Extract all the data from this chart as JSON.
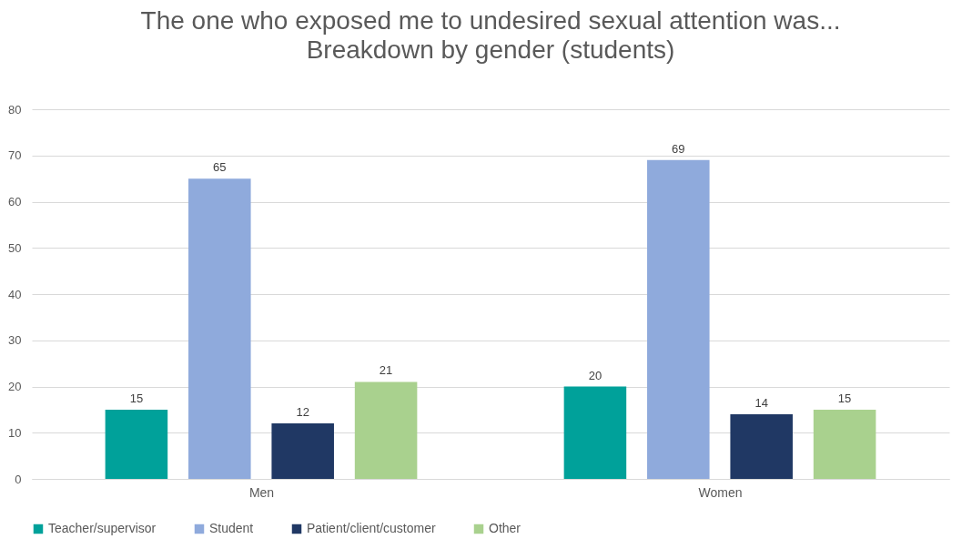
{
  "chart_data": {
    "type": "bar",
    "title": "The one who exposed me to undesired sexual attention was...",
    "subtitle": "Breakdown by gender (students)",
    "categories": [
      "Men",
      "Women"
    ],
    "series": [
      {
        "name": "Teacher/supervisor",
        "color": "#00a19a",
        "values": [
          15,
          20
        ]
      },
      {
        "name": "Student",
        "color": "#8faadc",
        "values": [
          65,
          69
        ]
      },
      {
        "name": "Patient/client/customer",
        "color": "#203864",
        "values": [
          12,
          14
        ]
      },
      {
        "name": "Other",
        "color": "#a9d18e",
        "values": [
          21,
          15
        ]
      }
    ],
    "ylim": [
      0,
      80
    ],
    "yticks": [
      0,
      10,
      20,
      30,
      40,
      50,
      60,
      70,
      80
    ],
    "grid": "y",
    "legend": "bottom",
    "data_labels": true
  }
}
